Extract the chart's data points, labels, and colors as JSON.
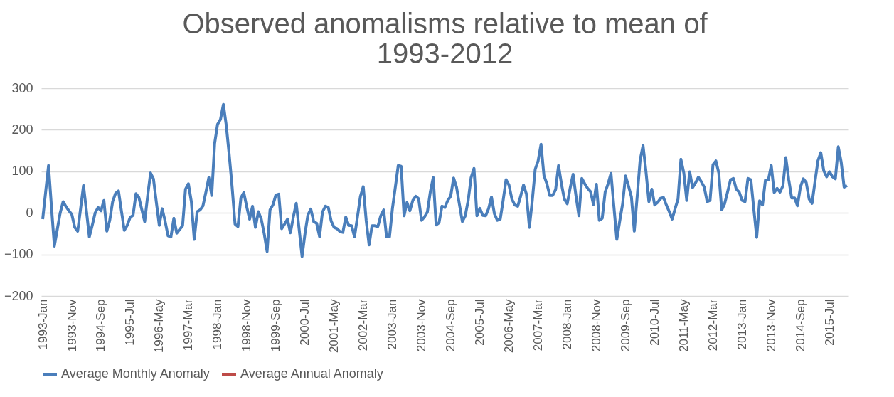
{
  "chart_data": {
    "type": "line",
    "title": "Observed anomalisms relative to mean of 1993-2012",
    "categories": [
      "1993-Jan",
      null,
      null,
      null,
      null,
      null,
      null,
      null,
      null,
      null,
      "1993-Nov",
      null,
      null,
      null,
      null,
      null,
      null,
      null,
      null,
      null,
      "1994-Sep",
      null,
      null,
      null,
      null,
      null,
      null,
      null,
      null,
      null,
      "1995-Jul",
      null,
      null,
      null,
      null,
      null,
      null,
      null,
      null,
      null,
      "1996-May",
      null,
      null,
      null,
      null,
      null,
      null,
      null,
      null,
      null,
      "1997-Mar",
      null,
      null,
      null,
      null,
      null,
      null,
      null,
      null,
      null,
      "1998-Jan",
      null,
      null,
      null,
      null,
      null,
      null,
      null,
      null,
      null,
      "1998-Nov",
      null,
      null,
      null,
      null,
      null,
      null,
      null,
      null,
      null,
      "1999-Sep",
      null,
      null,
      null,
      null,
      null,
      null,
      null,
      null,
      null,
      "2000-Jul",
      null,
      null,
      null,
      null,
      null,
      null,
      null,
      null,
      null,
      "2001-May",
      null,
      null,
      null,
      null,
      null,
      null,
      null,
      null,
      null,
      "2002-Mar",
      null,
      null,
      null,
      null,
      null,
      null,
      null,
      null,
      null,
      "2003-Jan",
      null,
      null,
      null,
      null,
      null,
      null,
      null,
      null,
      null,
      "2003-Nov",
      null,
      null,
      null,
      null,
      null,
      null,
      null,
      null,
      null,
      "2004-Sep",
      null,
      null,
      null,
      null,
      null,
      null,
      null,
      null,
      null,
      "2005-Jul",
      null,
      null,
      null,
      null,
      null,
      null,
      null,
      null,
      null,
      "2006-May",
      null,
      null,
      null,
      null,
      null,
      null,
      null,
      null,
      null,
      "2007-Mar",
      null,
      null,
      null,
      null,
      null,
      null,
      null,
      null,
      null,
      "2008-Jan",
      null,
      null,
      null,
      null,
      null,
      null,
      null,
      null,
      null,
      "2008-Nov",
      null,
      null,
      null,
      null,
      null,
      null,
      null,
      null,
      null,
      "2009-Sep",
      null,
      null,
      null,
      null,
      null,
      null,
      null,
      null,
      null,
      "2010-Jul",
      null,
      null,
      null,
      null,
      null,
      null,
      null,
      null,
      null,
      "2011-May",
      null,
      null,
      null,
      null,
      null,
      null,
      null,
      null,
      null,
      "2012-Mar",
      null,
      null,
      null,
      null,
      null,
      null,
      null,
      null,
      null,
      "2013-Jan",
      null,
      null,
      null,
      null,
      null,
      null,
      null,
      null,
      null,
      "2013-Nov",
      null,
      null,
      null,
      null,
      null,
      null,
      null,
      null,
      null,
      "2014-Sep",
      null,
      null,
      null,
      null,
      null,
      null,
      null,
      null,
      null,
      "2015-Jul",
      null,
      null,
      null,
      null,
      null,
      null
    ],
    "series": [
      {
        "name": "Average Monthly Anomaly",
        "color": "#4a7ebb",
        "values": [
          -15,
          50,
          114,
          15,
          -80,
          -40,
          0,
          27,
          15,
          5,
          -4,
          -35,
          -44,
          10,
          66,
          5,
          -58,
          -30,
          0,
          13,
          5,
          30,
          -44,
          -18,
          27,
          47,
          53,
          5,
          -42,
          -30,
          -11,
          -6,
          46,
          37,
          8,
          -21,
          40,
          96,
          82,
          25,
          -30,
          10,
          -20,
          -55,
          -58,
          -13,
          -49,
          -40,
          -31,
          57,
          70,
          27,
          -64,
          3,
          7,
          17,
          50,
          85,
          42,
          167,
          213,
          225,
          261,
          210,
          140,
          62,
          -27,
          -33,
          36,
          49,
          15,
          -15,
          16,
          -35,
          3,
          -15,
          -50,
          -93,
          7,
          19,
          43,
          45,
          -38,
          -27,
          -15,
          -48,
          -10,
          23,
          -40,
          -105,
          -50,
          -5,
          9,
          -21,
          -25,
          -57,
          2,
          16,
          13,
          -20,
          -35,
          -38,
          -45,
          -47,
          -10,
          -30,
          -31,
          -58,
          -10,
          39,
          63,
          -18,
          -77,
          -31,
          -31,
          -33,
          -7,
          7,
          -58,
          -58,
          10,
          62,
          114,
          112,
          -7,
          25,
          5,
          30,
          40,
          34,
          -18,
          -10,
          2,
          50,
          85,
          -29,
          -24,
          16,
          13,
          30,
          40,
          84,
          62,
          20,
          -21,
          -7,
          30,
          85,
          107,
          -7,
          11,
          -6,
          -7,
          10,
          38,
          -2,
          -18,
          -15,
          30,
          80,
          67,
          33,
          19,
          16,
          40,
          67,
          45,
          -35,
          30,
          105,
          125,
          165,
          90,
          70,
          42,
          42,
          56,
          114,
          70,
          33,
          22,
          60,
          93,
          40,
          -7,
          83,
          70,
          59,
          51,
          20,
          69,
          -18,
          -13,
          50,
          70,
          95,
          15,
          -64,
          -20,
          22,
          89,
          65,
          39,
          -44,
          40,
          127,
          162,
          100,
          27,
          57,
          19,
          25,
          35,
          37,
          19,
          3,
          -15,
          10,
          33,
          129,
          96,
          30,
          99,
          61,
          72,
          86,
          75,
          62,
          27,
          30,
          116,
          125,
          96,
          7,
          22,
          50,
          79,
          83,
          57,
          50,
          30,
          27,
          83,
          80,
          10,
          -59,
          29,
          19,
          79,
          79,
          114,
          49,
          59,
          50,
          65,
          133,
          80,
          36,
          36,
          17,
          62,
          82,
          73,
          33,
          23,
          75,
          125,
          145,
          102,
          87,
          99,
          87,
          82,
          159,
          122,
          62,
          66
        ]
      },
      {
        "name": "Average Annual Anomaly",
        "color": "#be4b48",
        "values": [
          null,
          null,
          null,
          null,
          null,
          null,
          null,
          null,
          null,
          null,
          null,
          null,
          null,
          null,
          null,
          null,
          null,
          null,
          null,
          null,
          null,
          null,
          null,
          null,
          null,
          null,
          null,
          null,
          null,
          null,
          null,
          null,
          null,
          null,
          null,
          null,
          null,
          null,
          null,
          null,
          null,
          null,
          null,
          null,
          null,
          null,
          null,
          null,
          null,
          null,
          null,
          null,
          null,
          null,
          null,
          null,
          null,
          null,
          null,
          null,
          null,
          null,
          null,
          null,
          null,
          null,
          null,
          null,
          null,
          null,
          null,
          null,
          null,
          null,
          null,
          null,
          null,
          null,
          null,
          null,
          null,
          null,
          null,
          null,
          null,
          null,
          null,
          null,
          null,
          null,
          null,
          null,
          null,
          null,
          null,
          null,
          null,
          null,
          null,
          null,
          null,
          null,
          null,
          null,
          null,
          null,
          null,
          null,
          null,
          null,
          null,
          null,
          null,
          null,
          null,
          null,
          null,
          null,
          null,
          null,
          null,
          null,
          null,
          null,
          null,
          null,
          null,
          null,
          null,
          null,
          null,
          null,
          null,
          null,
          null,
          null,
          null,
          null,
          null,
          null,
          null,
          null,
          null,
          null,
          null,
          null,
          null,
          null,
          null,
          null,
          null,
          null,
          null,
          null,
          null,
          null,
          null,
          null,
          null,
          null,
          null,
          null,
          null,
          null,
          null,
          null,
          null,
          null,
          null,
          null,
          null,
          null,
          null,
          null,
          null,
          null,
          null,
          null,
          null,
          null,
          null,
          null,
          null,
          null,
          null,
          null,
          null,
          null,
          null,
          null,
          null,
          null,
          null,
          null,
          null,
          null,
          null,
          null,
          null,
          null,
          null,
          null,
          null,
          null,
          null,
          null,
          null,
          null,
          null,
          null,
          null,
          null,
          null,
          null,
          null,
          null,
          null,
          null,
          null,
          null,
          null,
          null,
          null,
          null,
          null,
          null,
          null,
          null,
          null,
          null,
          null,
          null,
          null,
          null,
          null,
          null,
          null,
          null,
          null,
          null,
          null,
          null,
          null,
          null,
          null,
          null,
          null,
          null,
          null,
          null,
          null,
          null,
          null,
          null,
          null,
          null,
          null,
          null,
          null,
          null,
          null,
          null,
          null,
          null,
          null,
          null,
          null,
          null,
          null,
          null,
          null,
          null,
          null,
          null,
          null,
          null,
          null
        ]
      }
    ],
    "ylim": [
      -200,
      300
    ],
    "yticks": [
      -200,
      -100,
      0,
      100,
      200,
      300
    ],
    "grid": "y",
    "legend": "bottom",
    "marker": "none",
    "line_style": "solid"
  }
}
